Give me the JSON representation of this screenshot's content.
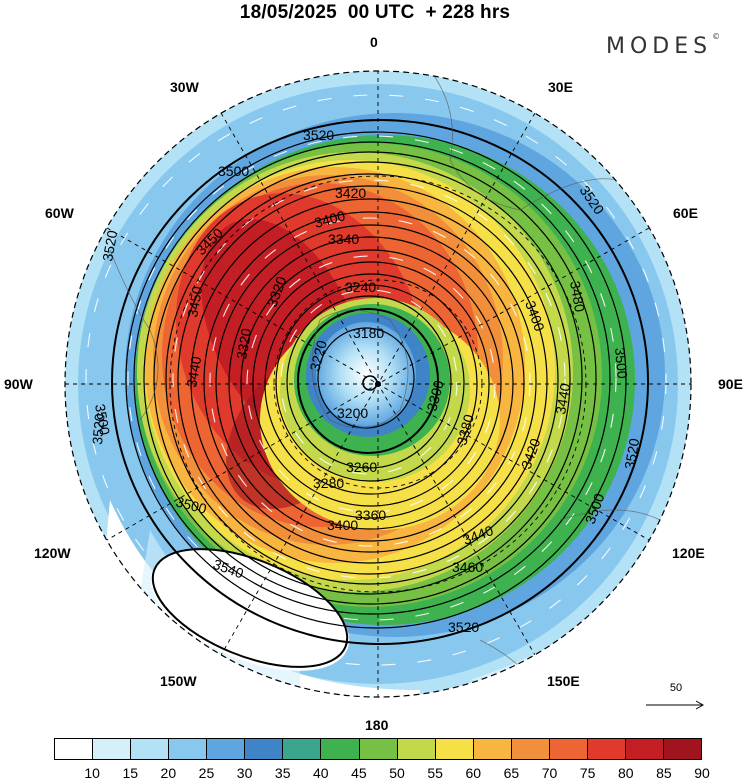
{
  "title": "18/05/2025  00 UTC  + 228 hrs",
  "brand": "MODES",
  "brand_mark": "©",
  "longitude_labels": {
    "lon_0": "0",
    "lon_30e": "30E",
    "lon_60e": "60E",
    "lon_90e": "90E",
    "lon_120e": "120E",
    "lon_150e": "150E",
    "lon_180": "180",
    "lon_150w": "150W",
    "lon_120w": "120W",
    "lon_90w": "90W",
    "lon_60w": "60W",
    "lon_30w": "30W"
  },
  "contour_labels": [
    "3180",
    "3220",
    "3240",
    "3200",
    "3260",
    "3280",
    "3300",
    "3320",
    "3340",
    "3360",
    "3380",
    "3400",
    "3420",
    "3440",
    "3450",
    "3460",
    "3480",
    "3500",
    "3520",
    "3540"
  ],
  "vector_reference": {
    "value": "50"
  },
  "colorbar": {
    "colors": [
      "#ffffff",
      "#d6f0fb",
      "#b3e1f6",
      "#88c8ee",
      "#5fa6e0",
      "#3e84c7",
      "#3ba58d",
      "#3db24e",
      "#76c043",
      "#c3d94b",
      "#f6e048",
      "#f8b641",
      "#f28f3b",
      "#ec6532",
      "#df3a2c",
      "#c41e25",
      "#a1141e"
    ],
    "ticks": [
      "10",
      "15",
      "20",
      "25",
      "30",
      "35",
      "40",
      "45",
      "50",
      "55",
      "60",
      "65",
      "70",
      "75",
      "80",
      "85",
      "90"
    ]
  }
}
